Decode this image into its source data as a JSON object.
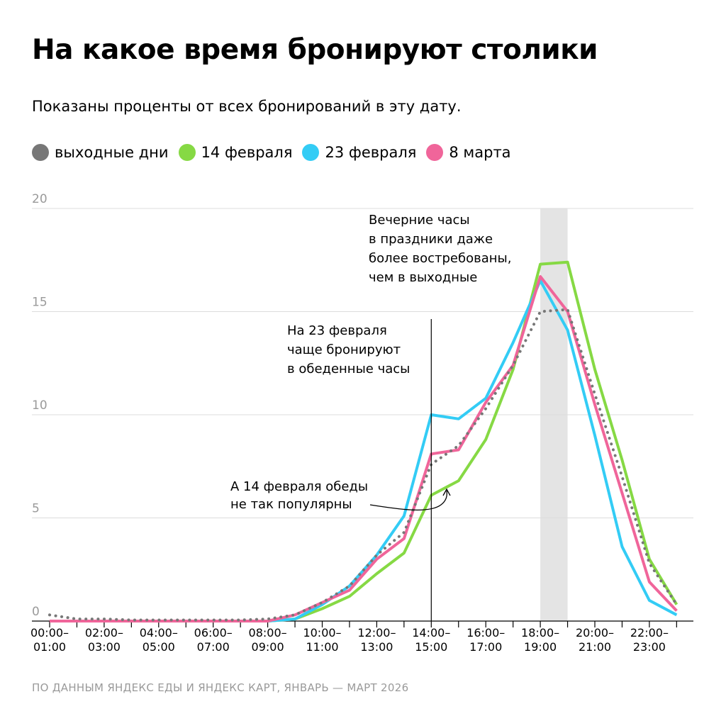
{
  "title": "На какое время бронируют столики",
  "subtitle": "Показаны проценты от всех бронирований в эту дату.",
  "source": "ПО ДАННЫМ ЯНДЕКС ЕДЫ И ЯНДЕКС КАРТ, ЯНВАРЬ — МАРТ 2026",
  "legend": [
    {
      "label": "выходные дни",
      "color": "#777777"
    },
    {
      "label": "14 февраля",
      "color": "#86d944"
    },
    {
      "label": "23 февраля",
      "color": "#33ccf5"
    },
    {
      "label": "8 марта",
      "color": "#f0659a"
    }
  ],
  "chart_data": {
    "type": "line",
    "y_ticks": [
      0,
      5,
      10,
      15,
      20
    ],
    "ylim": [
      0,
      20
    ],
    "grid": true,
    "x_tick_labels": [
      [
        "00:00–",
        "01:00"
      ],
      [
        "02:00–",
        "03:00"
      ],
      [
        "04:00–",
        "05:00"
      ],
      [
        "06:00–",
        "07:00"
      ],
      [
        "08:00–",
        "09:00"
      ],
      [
        "10:00–",
        "11:00"
      ],
      [
        "12:00–",
        "13:00"
      ],
      [
        "14:00–",
        "15:00"
      ],
      [
        "16:00–",
        "17:00"
      ],
      [
        "18:00–",
        "19:00"
      ],
      [
        "20:00–",
        "21:00"
      ],
      [
        "22:00–",
        "23:00"
      ]
    ],
    "x": [
      "00:00",
      "01:00",
      "02:00",
      "03:00",
      "04:00",
      "05:00",
      "06:00",
      "07:00",
      "08:00",
      "09:00",
      "10:00",
      "11:00",
      "12:00",
      "13:00",
      "14:00",
      "15:00",
      "16:00",
      "17:00",
      "18:00",
      "19:00",
      "20:00",
      "21:00",
      "22:00",
      "23:00"
    ],
    "highlight_hour": "19:00",
    "series": [
      {
        "name": "выходные дни",
        "color": "#777777",
        "style": "dotted",
        "values": [
          0.3,
          0.1,
          0.1,
          0.05,
          0.05,
          0.05,
          0.05,
          0.05,
          0.1,
          0.3,
          0.9,
          1.7,
          3.2,
          4.3,
          7.6,
          8.5,
          10.3,
          12.4,
          15.0,
          15.1,
          11.0,
          7.0,
          2.8,
          0.8
        ]
      },
      {
        "name": "14 февраля",
        "color": "#86d944",
        "style": "solid",
        "values": [
          0.0,
          0.0,
          0.0,
          0.0,
          0.0,
          0.0,
          0.0,
          0.0,
          0.0,
          0.1,
          0.6,
          1.2,
          2.3,
          3.3,
          6.1,
          6.8,
          8.8,
          12.2,
          17.3,
          17.4,
          12.2,
          7.8,
          3.0,
          0.8
        ]
      },
      {
        "name": "23 февраля",
        "color": "#33ccf5",
        "style": "solid",
        "values": [
          0.0,
          0.0,
          0.0,
          0.0,
          0.0,
          0.0,
          0.0,
          0.0,
          0.0,
          0.1,
          0.8,
          1.7,
          3.2,
          5.1,
          10.0,
          9.8,
          10.8,
          13.5,
          16.5,
          14.1,
          9.0,
          3.6,
          1.0,
          0.3
        ]
      },
      {
        "name": "8 марта",
        "color": "#f0659a",
        "style": "solid",
        "values": [
          0.0,
          0.0,
          0.0,
          0.0,
          0.0,
          0.0,
          0.0,
          0.0,
          0.0,
          0.3,
          0.9,
          1.5,
          3.0,
          4.0,
          8.1,
          8.3,
          10.6,
          12.4,
          16.7,
          15.0,
          10.5,
          6.2,
          1.9,
          0.5
        ]
      }
    ],
    "annotations": [
      {
        "lines": [
          "Вечерние часы",
          "в праздники даже",
          "более востребованы,",
          "чем в выходные"
        ]
      },
      {
        "lines": [
          "На 23 февраля",
          "чаще бронируют",
          "в обеденные часы"
        ]
      },
      {
        "lines": [
          "А 14 февраля обеды",
          "не так популярны"
        ]
      }
    ]
  }
}
